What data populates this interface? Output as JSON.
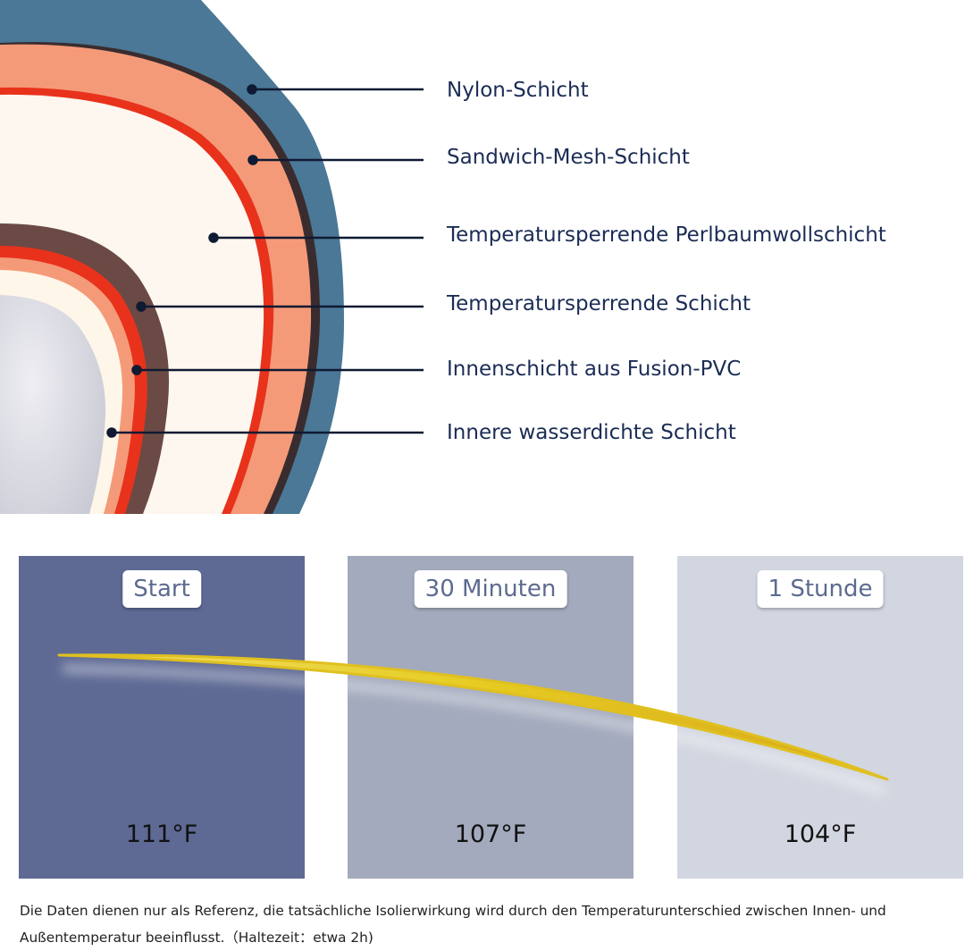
{
  "colors": {
    "nylon": "#4a7896",
    "mesh": "#f59a78",
    "mesh_edge": "#e8321c",
    "inner_brown": "#6b4a45",
    "label_text": "#1b2c55",
    "panel_start": "#5e6a94",
    "panel_30": "#a3aabd",
    "panel_1h": "#d2d6e0",
    "curve": "#e8c020"
  },
  "layers": [
    {
      "label": "Nylon-Schicht"
    },
    {
      "label": "Sandwich-Mesh-Schicht"
    },
    {
      "label": "Temperatursperrende Perlbaumwollschicht"
    },
    {
      "label": "Temperatursperrende Schicht"
    },
    {
      "label": "Innenschicht aus Fusion-PVC"
    },
    {
      "label": "Innere wasserdichte Schicht"
    }
  ],
  "stages": [
    {
      "label": "Start",
      "temperature": "111°F"
    },
    {
      "label": "30 Minuten",
      "temperature": "107°F"
    },
    {
      "label": "1 Stunde",
      "temperature": "104°F"
    }
  ],
  "footnote": "Die Daten dienen nur als Referenz, die tatsächliche Isolierwirkung wird durch den Temperaturunterschied zwischen Innen- und Außentemperatur beeinflusst.（Haltezeit：etwa 2h)"
}
